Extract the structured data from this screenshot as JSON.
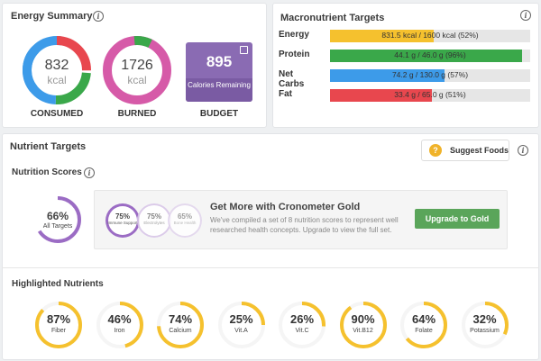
{
  "energy_summary": {
    "title": "Energy Summary",
    "consumed": {
      "value": "832",
      "unit": "kcal",
      "label": "CONSUMED"
    },
    "burned": {
      "value": "1726",
      "unit": "kcal",
      "label": "BURNED"
    },
    "budget": {
      "value": "895",
      "sub": "Calories Remaining",
      "label": "BUDGET"
    }
  },
  "macronutrient_targets": {
    "title": "Macronutrient Targets",
    "rows": [
      {
        "name": "Energy",
        "text": "831.5 kcal / 1600 kcal (52%)",
        "percent": 52,
        "color": "#f5c12e"
      },
      {
        "name": "Protein",
        "text": "44.1 g / 46.0 g (96%)",
        "percent": 96,
        "color": "#3aa84a"
      },
      {
        "name": "Net Carbs",
        "text": "74.2 g / 130.0 g (57%)",
        "percent": 57,
        "color": "#3d9be9"
      },
      {
        "name": "Fat",
        "text": "33.4 g / 65.0 g (51%)",
        "percent": 51,
        "color": "#e8474e"
      }
    ]
  },
  "nutrient_targets": {
    "title": "Nutrient Targets",
    "suggest_label": "Suggest Foods",
    "scores_title": "Nutrition Scores",
    "all_targets": {
      "percent": "66%",
      "label": "All Targets",
      "fraction": 0.66
    },
    "gold": {
      "title": "Get More with Cronometer Gold",
      "description": "We've compiled a set of 8 nutrition scores to represent well researched health concepts. Upgrade to view the full set.",
      "button": "Upgrade to Gold",
      "scores": [
        {
          "percent": "75%",
          "label": "Immune Support"
        },
        {
          "percent": "75%",
          "label": "Electrolytes"
        },
        {
          "percent": "65%",
          "label": "Bone Health"
        }
      ]
    },
    "highlighted_title": "Highlighted Nutrients",
    "highlighted": [
      {
        "percent": "87%",
        "label": "Fiber",
        "fraction": 0.87
      },
      {
        "percent": "46%",
        "label": "Iron",
        "fraction": 0.46
      },
      {
        "percent": "74%",
        "label": "Calcium",
        "fraction": 0.74
      },
      {
        "percent": "25%",
        "label": "Vit.A",
        "fraction": 0.25
      },
      {
        "percent": "26%",
        "label": "Vit.C",
        "fraction": 0.26
      },
      {
        "percent": "90%",
        "label": "Vit.B12",
        "fraction": 0.9
      },
      {
        "percent": "64%",
        "label": "Folate",
        "fraction": 0.64
      },
      {
        "percent": "32%",
        "label": "Potassium",
        "fraction": 0.32
      }
    ]
  }
}
